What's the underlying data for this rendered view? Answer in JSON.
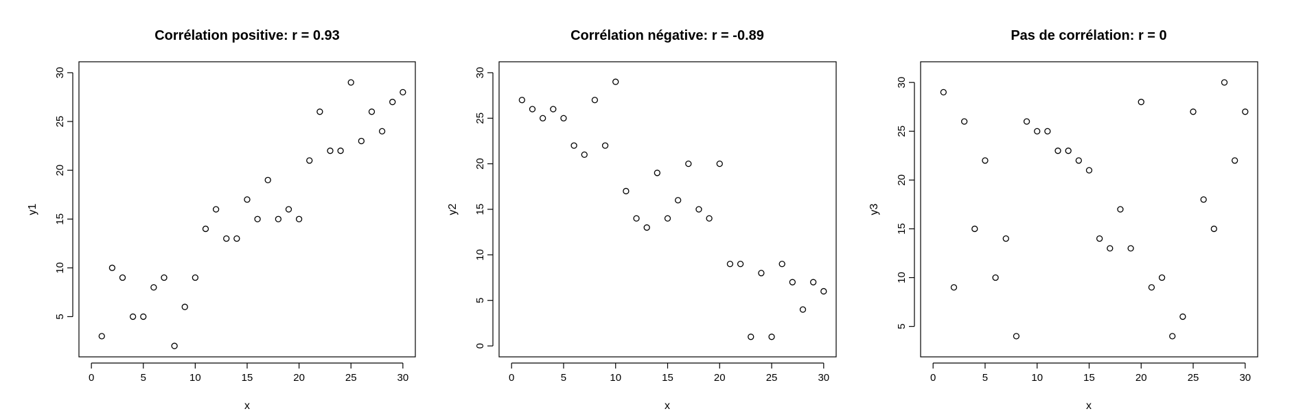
{
  "chart_data": [
    {
      "type": "scatter",
      "title": "Corrélation positive: r = 0.93",
      "xlabel": "x",
      "ylabel": "y1",
      "xlim": [
        0,
        30
      ],
      "ylim": [
        2,
        30
      ],
      "xticks": [
        0,
        5,
        10,
        15,
        20,
        25,
        30
      ],
      "yticks": [
        5,
        10,
        15,
        20,
        25,
        30
      ],
      "x": [
        1,
        2,
        3,
        4,
        5,
        6,
        7,
        8,
        9,
        10,
        11,
        12,
        13,
        14,
        15,
        16,
        17,
        18,
        19,
        20,
        21,
        22,
        23,
        24,
        25,
        26,
        27,
        28,
        29,
        30
      ],
      "y": [
        3,
        10,
        9,
        5,
        5,
        8,
        9,
        2,
        6,
        9,
        14,
        16,
        13,
        13,
        17,
        15,
        19,
        15,
        16,
        15,
        21,
        26,
        22,
        22,
        29,
        23,
        26,
        24,
        27,
        28
      ]
    },
    {
      "type": "scatter",
      "title": "Corrélation négative: r = -0.89",
      "xlabel": "x",
      "ylabel": "y2",
      "xlim": [
        0,
        30
      ],
      "ylim": [
        0,
        30
      ],
      "xticks": [
        0,
        5,
        10,
        15,
        20,
        25,
        30
      ],
      "yticks": [
        0,
        5,
        10,
        15,
        20,
        25,
        30
      ],
      "x": [
        1,
        2,
        3,
        4,
        5,
        6,
        7,
        8,
        9,
        10,
        11,
        12,
        13,
        14,
        15,
        16,
        17,
        18,
        19,
        20,
        21,
        22,
        23,
        24,
        25,
        26,
        27,
        28,
        29,
        30
      ],
      "y": [
        27,
        26,
        25,
        26,
        25,
        22,
        21,
        27,
        22,
        29,
        17,
        14,
        13,
        19,
        14,
        16,
        20,
        15,
        14,
        20,
        9,
        9,
        1,
        8,
        1,
        9,
        7,
        4,
        7,
        6
      ]
    },
    {
      "type": "scatter",
      "title": "Pas de corrélation: r = 0",
      "xlabel": "x",
      "ylabel": "y3",
      "xlim": [
        0,
        30
      ],
      "ylim": [
        3,
        31
      ],
      "xticks": [
        0,
        5,
        10,
        15,
        20,
        25,
        30
      ],
      "yticks": [
        5,
        10,
        15,
        20,
        25,
        30
      ],
      "x": [
        1,
        2,
        3,
        4,
        5,
        6,
        7,
        8,
        9,
        10,
        11,
        12,
        13,
        14,
        15,
        16,
        17,
        18,
        19,
        20,
        21,
        22,
        23,
        24,
        25,
        26,
        27,
        28,
        29,
        30
      ],
      "y": [
        29,
        9,
        26,
        15,
        22,
        10,
        14,
        4,
        26,
        25,
        25,
        23,
        23,
        22,
        21,
        14,
        13,
        17,
        13,
        28,
        9,
        10,
        4,
        6,
        27,
        18,
        15,
        30,
        22,
        27
      ]
    }
  ]
}
